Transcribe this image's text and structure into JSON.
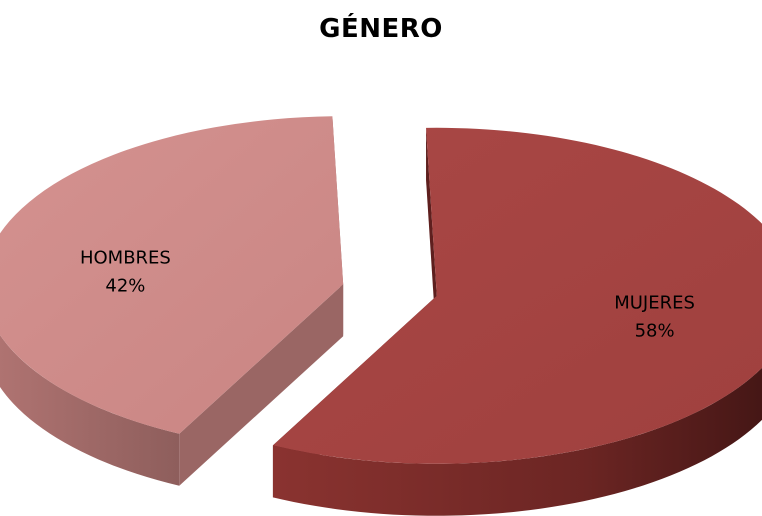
{
  "chart_data": {
    "type": "pie",
    "style": "3d-exploded",
    "title": "GÉNERO",
    "slices": [
      {
        "label": "MUJERES",
        "value": 58,
        "value_label": "58%",
        "color": "#A64442",
        "side_color": "#5E1F1E"
      },
      {
        "label": "HOMBRES",
        "value": 42,
        "value_label": "42%",
        "color": "#D08D8B",
        "side_color": "#9A6664"
      }
    ],
    "legend": "none"
  }
}
